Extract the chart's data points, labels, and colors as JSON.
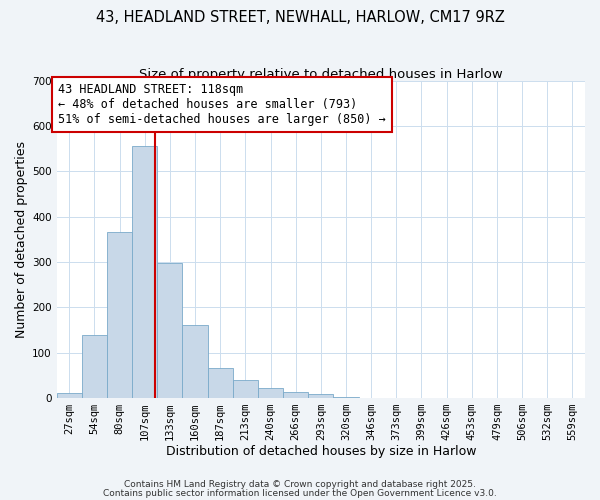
{
  "title": "43, HEADLAND STREET, NEWHALL, HARLOW, CM17 9RZ",
  "subtitle": "Size of property relative to detached houses in Harlow",
  "xlabel": "Distribution of detached houses by size in Harlow",
  "ylabel": "Number of detached properties",
  "bar_labels": [
    "27sqm",
    "54sqm",
    "80sqm",
    "107sqm",
    "133sqm",
    "160sqm",
    "187sqm",
    "213sqm",
    "240sqm",
    "266sqm",
    "293sqm",
    "320sqm",
    "346sqm",
    "373sqm",
    "399sqm",
    "426sqm",
    "453sqm",
    "479sqm",
    "506sqm",
    "532sqm",
    "559sqm"
  ],
  "bar_heights": [
    10,
    138,
    365,
    555,
    298,
    162,
    65,
    40,
    23,
    13,
    8,
    2,
    0,
    0,
    0,
    0,
    0,
    0,
    0,
    0,
    0
  ],
  "bar_color": "#c8d8e8",
  "bar_edgecolor": "#7aaaca",
  "vline_x_index": 3.42,
  "vline_color": "#cc0000",
  "annotation_line1": "43 HEADLAND STREET: 118sqm",
  "annotation_line2": "← 48% of detached houses are smaller (793)",
  "annotation_line3": "51% of semi-detached houses are larger (850) →",
  "annotation_box_color": "#ffffff",
  "annotation_box_edgecolor": "#cc0000",
  "ylim": [
    0,
    700
  ],
  "yticks": [
    0,
    100,
    200,
    300,
    400,
    500,
    600,
    700
  ],
  "footer_line1": "Contains HM Land Registry data © Crown copyright and database right 2025.",
  "footer_line2": "Contains public sector information licensed under the Open Government Licence v3.0.",
  "plot_bg_color": "#ffffff",
  "fig_bg_color": "#f0f4f8",
  "title_fontsize": 10.5,
  "subtitle_fontsize": 9.5,
  "axis_label_fontsize": 9,
  "tick_fontsize": 7.5,
  "annotation_fontsize": 8.5,
  "footer_fontsize": 6.5
}
